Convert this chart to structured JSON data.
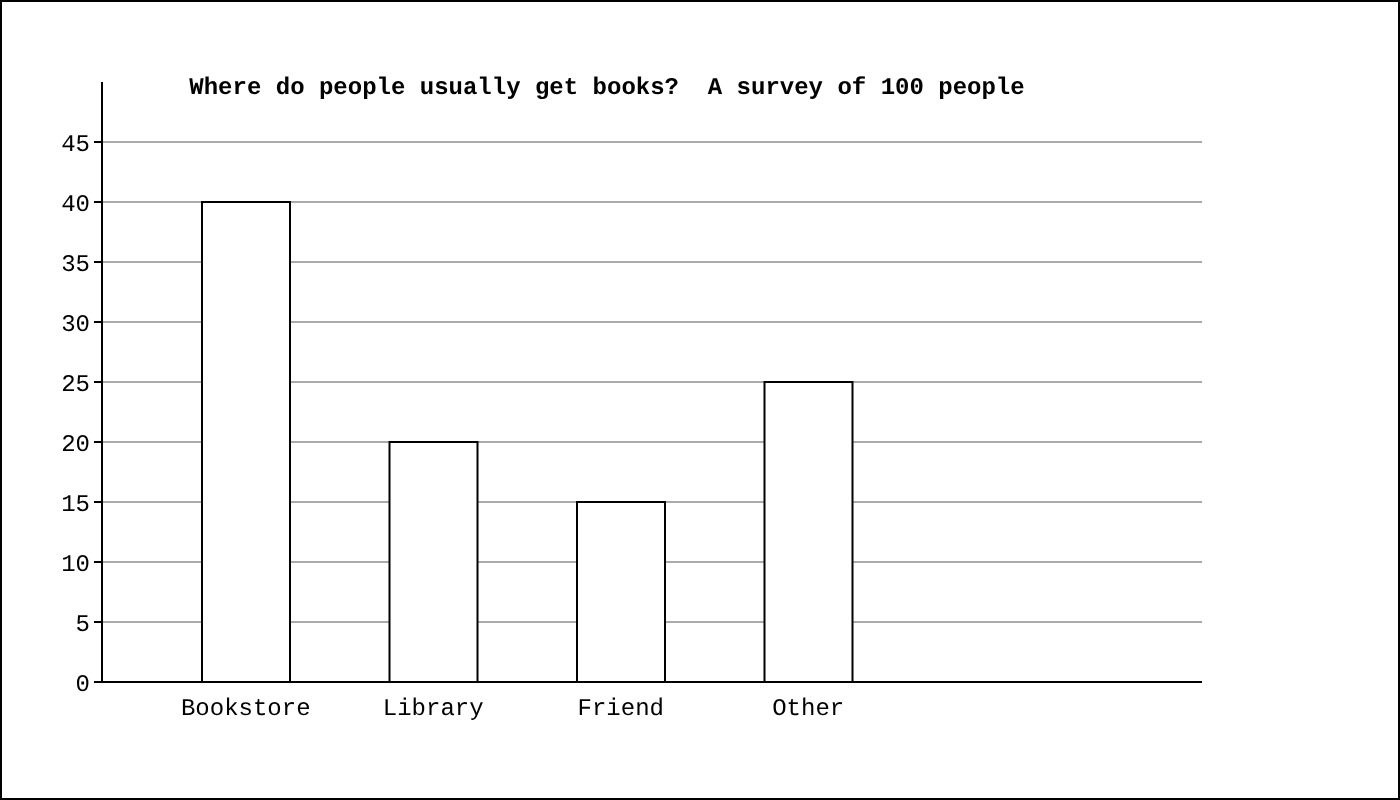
{
  "chart_data": {
    "type": "bar",
    "title": "Where do people usually get books?  A survey of 100 people",
    "categories": [
      "Bookstore",
      "Library",
      "Friend",
      "Other"
    ],
    "values": [
      40,
      20,
      15,
      25
    ],
    "color": "#ffffff",
    "ylim": [
      0,
      50
    ],
    "yticks": [
      0,
      5,
      10,
      15,
      20,
      25,
      30,
      35,
      40,
      45
    ],
    "grid": "y"
  }
}
